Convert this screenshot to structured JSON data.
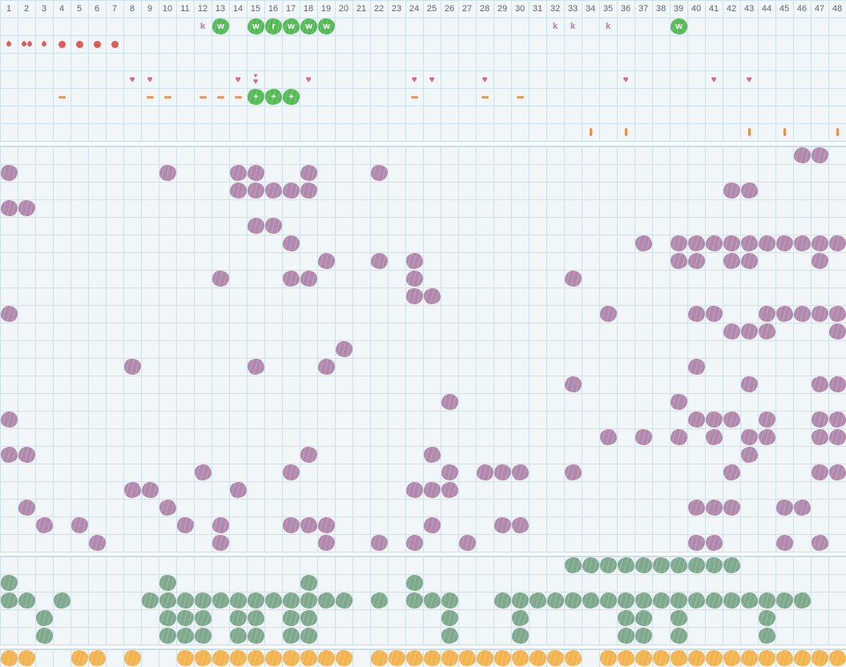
{
  "palette": {
    "background": "#f1f6f9",
    "grid_line": "#cfe0eb",
    "separator_line": "#c9dae5",
    "column_number": "#5b6570",
    "purple_crayon": "#b189ad",
    "bright_green_crayon": "#54ba54",
    "sage_green_crayon": "#7fa98c",
    "orange_crayon": "#f3b44f",
    "red_drop": "#e25b5b",
    "pink_heart": "#e2608b",
    "orange_dash": "#f0955c",
    "orange_bar": "#ee8c4a",
    "k_letter": "#b279ae"
  },
  "columns": [
    "1",
    "2",
    "3",
    "4",
    "5",
    "6",
    "7",
    "8",
    "9",
    "10",
    "11",
    "12",
    "13",
    "14",
    "15",
    "16",
    "17",
    "18",
    "19",
    "20",
    "21",
    "22",
    "23",
    "24",
    "25",
    "26",
    "27",
    "28",
    "29",
    "30",
    "31",
    "32",
    "33",
    "34",
    "35",
    "36",
    "37",
    "38",
    "39",
    "40",
    "41",
    "42",
    "43",
    "44",
    "45",
    "46",
    "47",
    "48"
  ],
  "header": {
    "letter_row": {
      "k_marks": [
        12,
        32,
        33,
        35
      ],
      "green_marks": [
        {
          "col": 13,
          "letter": "w"
        },
        {
          "col": 15,
          "letter": "w"
        },
        {
          "col": 16,
          "letter": "r"
        },
        {
          "col": 17,
          "letter": "w"
        },
        {
          "col": 18,
          "letter": "w"
        },
        {
          "col": 19,
          "letter": "w"
        },
        {
          "col": 39,
          "letter": "w"
        }
      ]
    },
    "water_row": {
      "small_drops": [
        1,
        3
      ],
      "double_drops": [
        2
      ],
      "dots": [
        4,
        5,
        6,
        7
      ]
    },
    "heart_row": {
      "single": [
        8,
        9,
        14,
        18,
        24,
        25,
        28,
        36,
        41,
        43
      ],
      "double": [
        15
      ],
      "heart_glyph": "♥"
    },
    "dash_row": {
      "dashes": [
        4,
        9,
        10,
        12,
        13,
        14,
        24,
        28,
        30
      ],
      "green_plus_marks": [
        {
          "col": 15,
          "letter": "+"
        },
        {
          "col": 16,
          "letter": "+"
        },
        {
          "col": 17,
          "letter": "+"
        }
      ]
    },
    "bar_row": {
      "bars": [
        34,
        36,
        43,
        45,
        48
      ]
    }
  },
  "main_section": {
    "rows": [
      [
        46,
        47
      ],
      [
        1,
        10,
        14,
        15,
        18,
        22
      ],
      [
        14,
        15,
        16,
        17,
        18,
        42,
        43
      ],
      [
        1,
        2
      ],
      [
        15,
        16
      ],
      [
        17,
        37,
        39,
        40,
        41,
        42,
        43,
        44,
        45,
        46,
        47,
        48
      ],
      [
        19,
        22,
        24,
        39,
        40,
        42,
        43,
        47
      ],
      [
        13,
        17,
        18,
        24,
        33
      ],
      [
        24,
        25
      ],
      [
        1,
        35,
        40,
        41,
        44,
        45,
        46,
        47,
        48
      ],
      [
        42,
        43,
        44,
        48
      ],
      [
        20
      ],
      [
        8,
        15,
        19,
        40
      ],
      [
        33,
        43,
        47,
        48
      ],
      [
        26,
        39
      ],
      [
        1,
        40,
        41,
        42,
        44,
        47,
        48
      ],
      [
        35,
        37,
        39,
        41,
        43,
        44,
        47,
        48
      ],
      [
        1,
        2,
        18,
        25,
        43
      ],
      [
        12,
        17,
        26,
        28,
        29,
        30,
        33,
        42,
        47,
        48
      ],
      [
        8,
        9,
        14,
        24,
        25,
        26
      ],
      [
        2,
        10,
        40,
        41,
        42,
        45,
        46
      ],
      [
        3,
        5,
        11,
        13,
        17,
        18,
        19,
        25,
        29,
        30
      ],
      [
        6,
        13,
        19,
        22,
        24,
        27,
        40,
        41,
        45,
        47
      ]
    ]
  },
  "green_section": {
    "rows": [
      [
        33,
        34,
        35,
        36,
        37,
        38,
        39,
        40,
        41,
        42
      ],
      [
        1,
        10,
        18,
        24
      ],
      [
        1,
        2,
        4,
        9,
        10,
        11,
        12,
        13,
        14,
        15,
        16,
        17,
        18,
        19,
        20,
        22,
        24,
        25,
        26,
        29,
        30,
        31,
        32,
        33,
        34,
        35,
        36,
        37,
        38,
        39,
        40,
        41,
        42,
        43,
        44,
        45,
        46
      ],
      [
        3,
        10,
        11,
        12,
        14,
        15,
        17,
        18,
        26,
        30,
        36,
        37,
        39,
        44
      ],
      [
        3,
        10,
        11,
        12,
        14,
        15,
        17,
        18,
        26,
        30,
        36,
        37,
        39,
        44
      ]
    ]
  },
  "orange_section": {
    "cols": [
      1,
      2,
      5,
      6,
      8,
      11,
      12,
      13,
      14,
      15,
      16,
      17,
      18,
      19,
      20,
      22,
      23,
      24,
      25,
      26,
      27,
      28,
      29,
      30,
      31,
      32,
      33,
      35,
      36,
      37,
      38,
      39,
      40,
      41,
      42,
      43,
      44,
      45,
      46,
      47,
      48
    ]
  }
}
